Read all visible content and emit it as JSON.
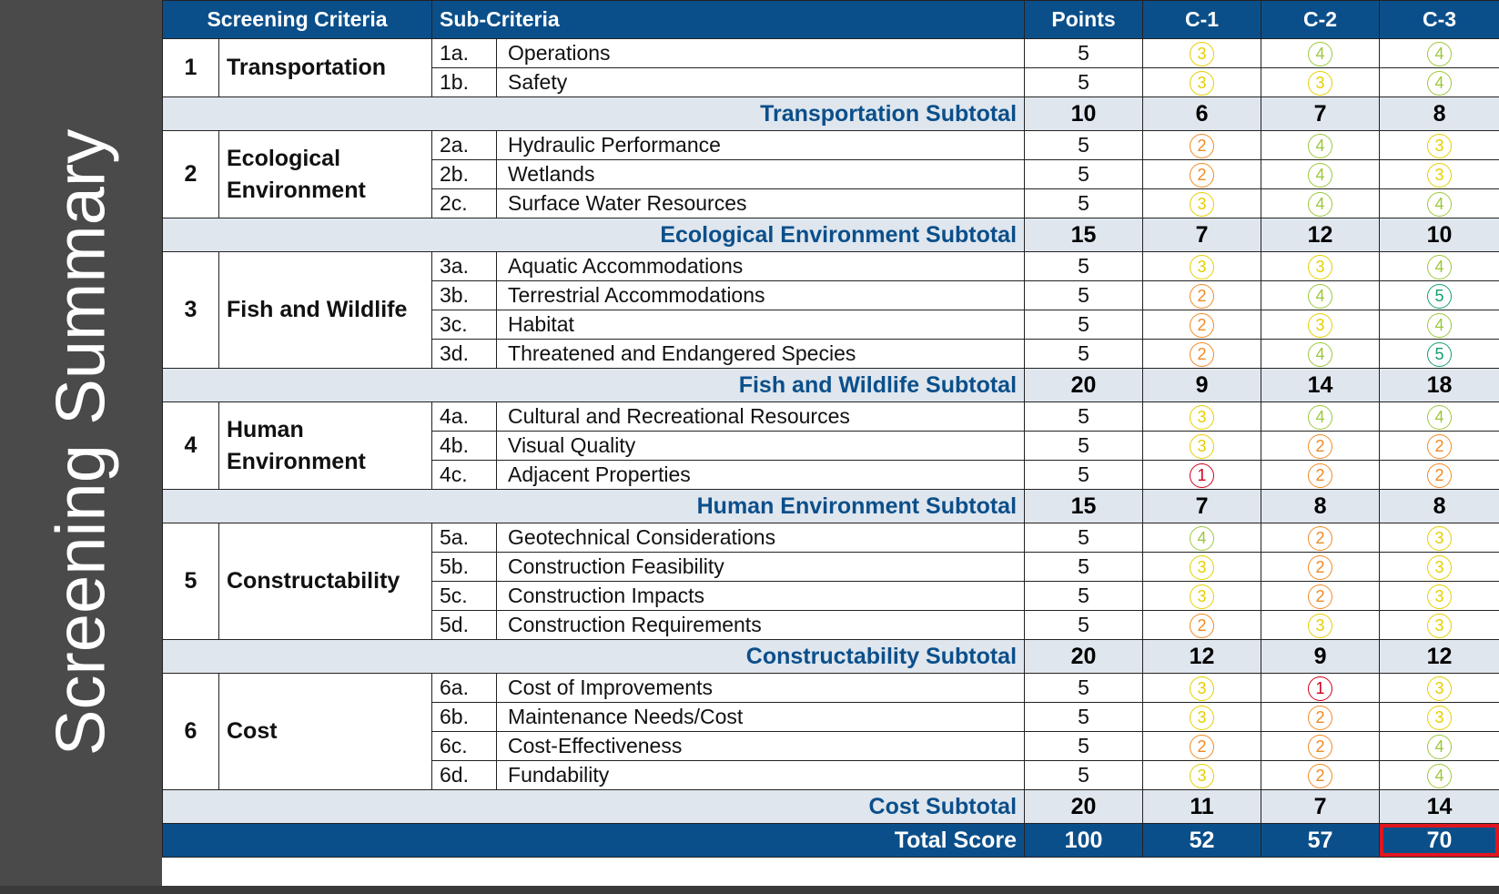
{
  "side_title": "Screening Summary",
  "table": {
    "columns": [
      "Screening Criteria",
      "Sub-Criteria",
      "Points",
      "C-1",
      "C-2",
      "C-3"
    ],
    "groups": [
      {
        "number": "1",
        "criteria": "Transportation",
        "items": [
          {
            "code": "1a.",
            "name": "Operations",
            "points": 5,
            "scores": [
              3,
              4,
              4
            ]
          },
          {
            "code": "1b.",
            "name": "Safety",
            "points": 5,
            "scores": [
              3,
              3,
              4
            ]
          }
        ],
        "subtotal_label": "Transportation Subtotal",
        "subtotal_points": 10,
        "subtotal_scores": [
          6,
          7,
          8
        ]
      },
      {
        "number": "2",
        "criteria": "Ecological Environment",
        "items": [
          {
            "code": "2a.",
            "name": "Hydraulic Performance",
            "points": 5,
            "scores": [
              2,
              4,
              3
            ]
          },
          {
            "code": "2b.",
            "name": "Wetlands",
            "points": 5,
            "scores": [
              2,
              4,
              3
            ]
          },
          {
            "code": "2c.",
            "name": "Surface Water Resources",
            "points": 5,
            "scores": [
              3,
              4,
              4
            ]
          }
        ],
        "subtotal_label": "Ecological Environment Subtotal",
        "subtotal_points": 15,
        "subtotal_scores": [
          7,
          12,
          10
        ]
      },
      {
        "number": "3",
        "criteria": "Fish and Wildlife",
        "items": [
          {
            "code": "3a.",
            "name": "Aquatic Accommodations",
            "points": 5,
            "scores": [
              3,
              3,
              4
            ]
          },
          {
            "code": "3b.",
            "name": "Terrestrial Accommodations",
            "points": 5,
            "scores": [
              2,
              4,
              5
            ]
          },
          {
            "code": "3c.",
            "name": "Habitat",
            "points": 5,
            "scores": [
              2,
              3,
              4
            ]
          },
          {
            "code": "3d.",
            "name": "Threatened and Endangered Species",
            "points": 5,
            "scores": [
              2,
              4,
              5
            ]
          }
        ],
        "subtotal_label": "Fish and Wildlife Subtotal",
        "subtotal_points": 20,
        "subtotal_scores": [
          9,
          14,
          18
        ]
      },
      {
        "number": "4",
        "criteria": "Human Environment",
        "items": [
          {
            "code": "4a.",
            "name": "Cultural and Recreational Resources",
            "points": 5,
            "scores": [
              3,
              4,
              4
            ]
          },
          {
            "code": "4b.",
            "name": "Visual Quality",
            "points": 5,
            "scores": [
              3,
              2,
              2
            ]
          },
          {
            "code": "4c.",
            "name": "Adjacent Properties",
            "points": 5,
            "scores": [
              1,
              2,
              2
            ]
          }
        ],
        "subtotal_label": "Human Environment Subtotal",
        "subtotal_points": 15,
        "subtotal_scores": [
          7,
          8,
          8
        ]
      },
      {
        "number": "5",
        "criteria": "Constructability",
        "items": [
          {
            "code": "5a.",
            "name": "Geotechnical Considerations",
            "points": 5,
            "scores": [
              4,
              2,
              3
            ]
          },
          {
            "code": "5b.",
            "name": "Construction Feasibility",
            "points": 5,
            "scores": [
              3,
              2,
              3
            ]
          },
          {
            "code": "5c.",
            "name": "Construction Impacts",
            "points": 5,
            "scores": [
              3,
              2,
              3
            ]
          },
          {
            "code": "5d.",
            "name": "Construction Requirements",
            "points": 5,
            "scores": [
              2,
              3,
              3
            ]
          }
        ],
        "subtotal_label": "Constructability Subtotal",
        "subtotal_points": 20,
        "subtotal_scores": [
          12,
          9,
          12
        ]
      },
      {
        "number": "6",
        "criteria": "Cost",
        "items": [
          {
            "code": "6a.",
            "name": "Cost of Improvements",
            "points": 5,
            "scores": [
              3,
              1,
              3
            ]
          },
          {
            "code": "6b.",
            "name": "Maintenance Needs/Cost",
            "points": 5,
            "scores": [
              3,
              2,
              3
            ]
          },
          {
            "code": "6c.",
            "name": "Cost-Effectiveness",
            "points": 5,
            "scores": [
              2,
              2,
              4
            ]
          },
          {
            "code": "6d.",
            "name": "Fundability",
            "points": 5,
            "scores": [
              3,
              2,
              4
            ]
          }
        ],
        "subtotal_label": "Cost Subtotal",
        "subtotal_points": 20,
        "subtotal_scores": [
          11,
          7,
          14
        ]
      }
    ],
    "total_label": "Total Score",
    "total_points": 100,
    "total_scores": [
      52,
      57,
      70
    ]
  }
}
